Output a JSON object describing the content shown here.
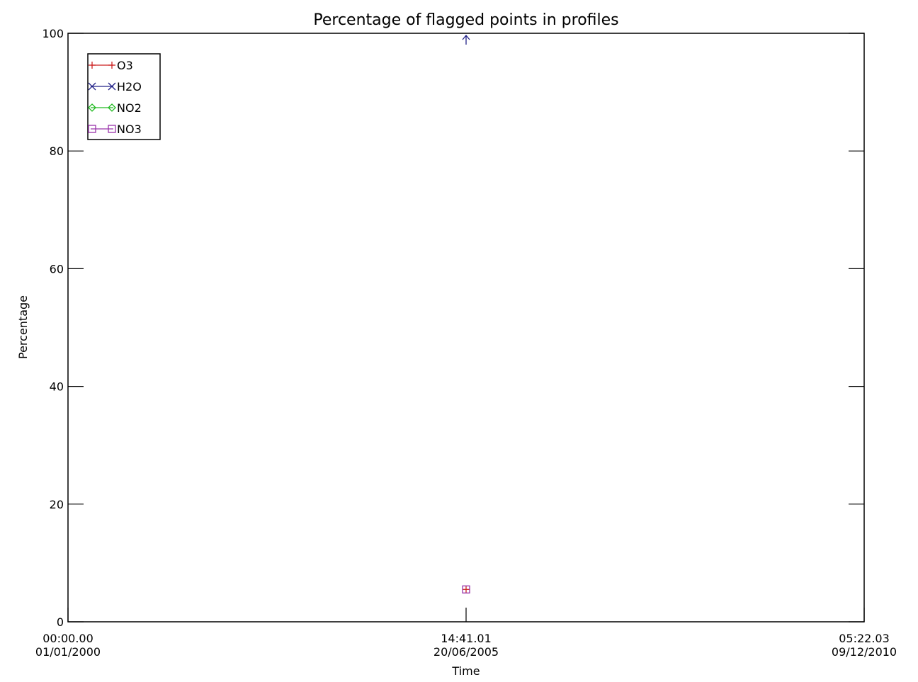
{
  "chart_data": {
    "type": "scatter",
    "title": "Percentage of flagged points in profiles",
    "xlabel": "Time",
    "ylabel": "Percentage",
    "xlim": [
      "00:00.00 01/01/2000",
      "05:22.03 09/12/2010"
    ],
    "ylim": [
      0,
      100
    ],
    "x_ticks": [
      {
        "line1": "00:00.00",
        "line2": "01/01/2000"
      },
      {
        "line1": "14:41.01",
        "line2": "20/06/2005"
      },
      {
        "line1": "05:22.03",
        "line2": "09/12/2010"
      }
    ],
    "y_ticks": [
      "0",
      "20",
      "40",
      "60",
      "80",
      "100"
    ],
    "grid": false,
    "legend_position": "top-left",
    "series": [
      {
        "name": "O3",
        "color": "#cc2222",
        "marker": "plus",
        "points": [
          {
            "x": "14:41.01 20/06/2005",
            "y": 5.5
          }
        ]
      },
      {
        "name": "H2O",
        "color": "#222288",
        "marker": "cross",
        "points": [
          {
            "x": "14:41.01 20/06/2005",
            "y": 100
          }
        ]
      },
      {
        "name": "NO2",
        "color": "#22bb22",
        "marker": "diamond",
        "points": []
      },
      {
        "name": "NO3",
        "color": "#9933aa",
        "marker": "square",
        "points": [
          {
            "x": "14:41.01 20/06/2005",
            "y": 5.5
          }
        ]
      }
    ]
  }
}
